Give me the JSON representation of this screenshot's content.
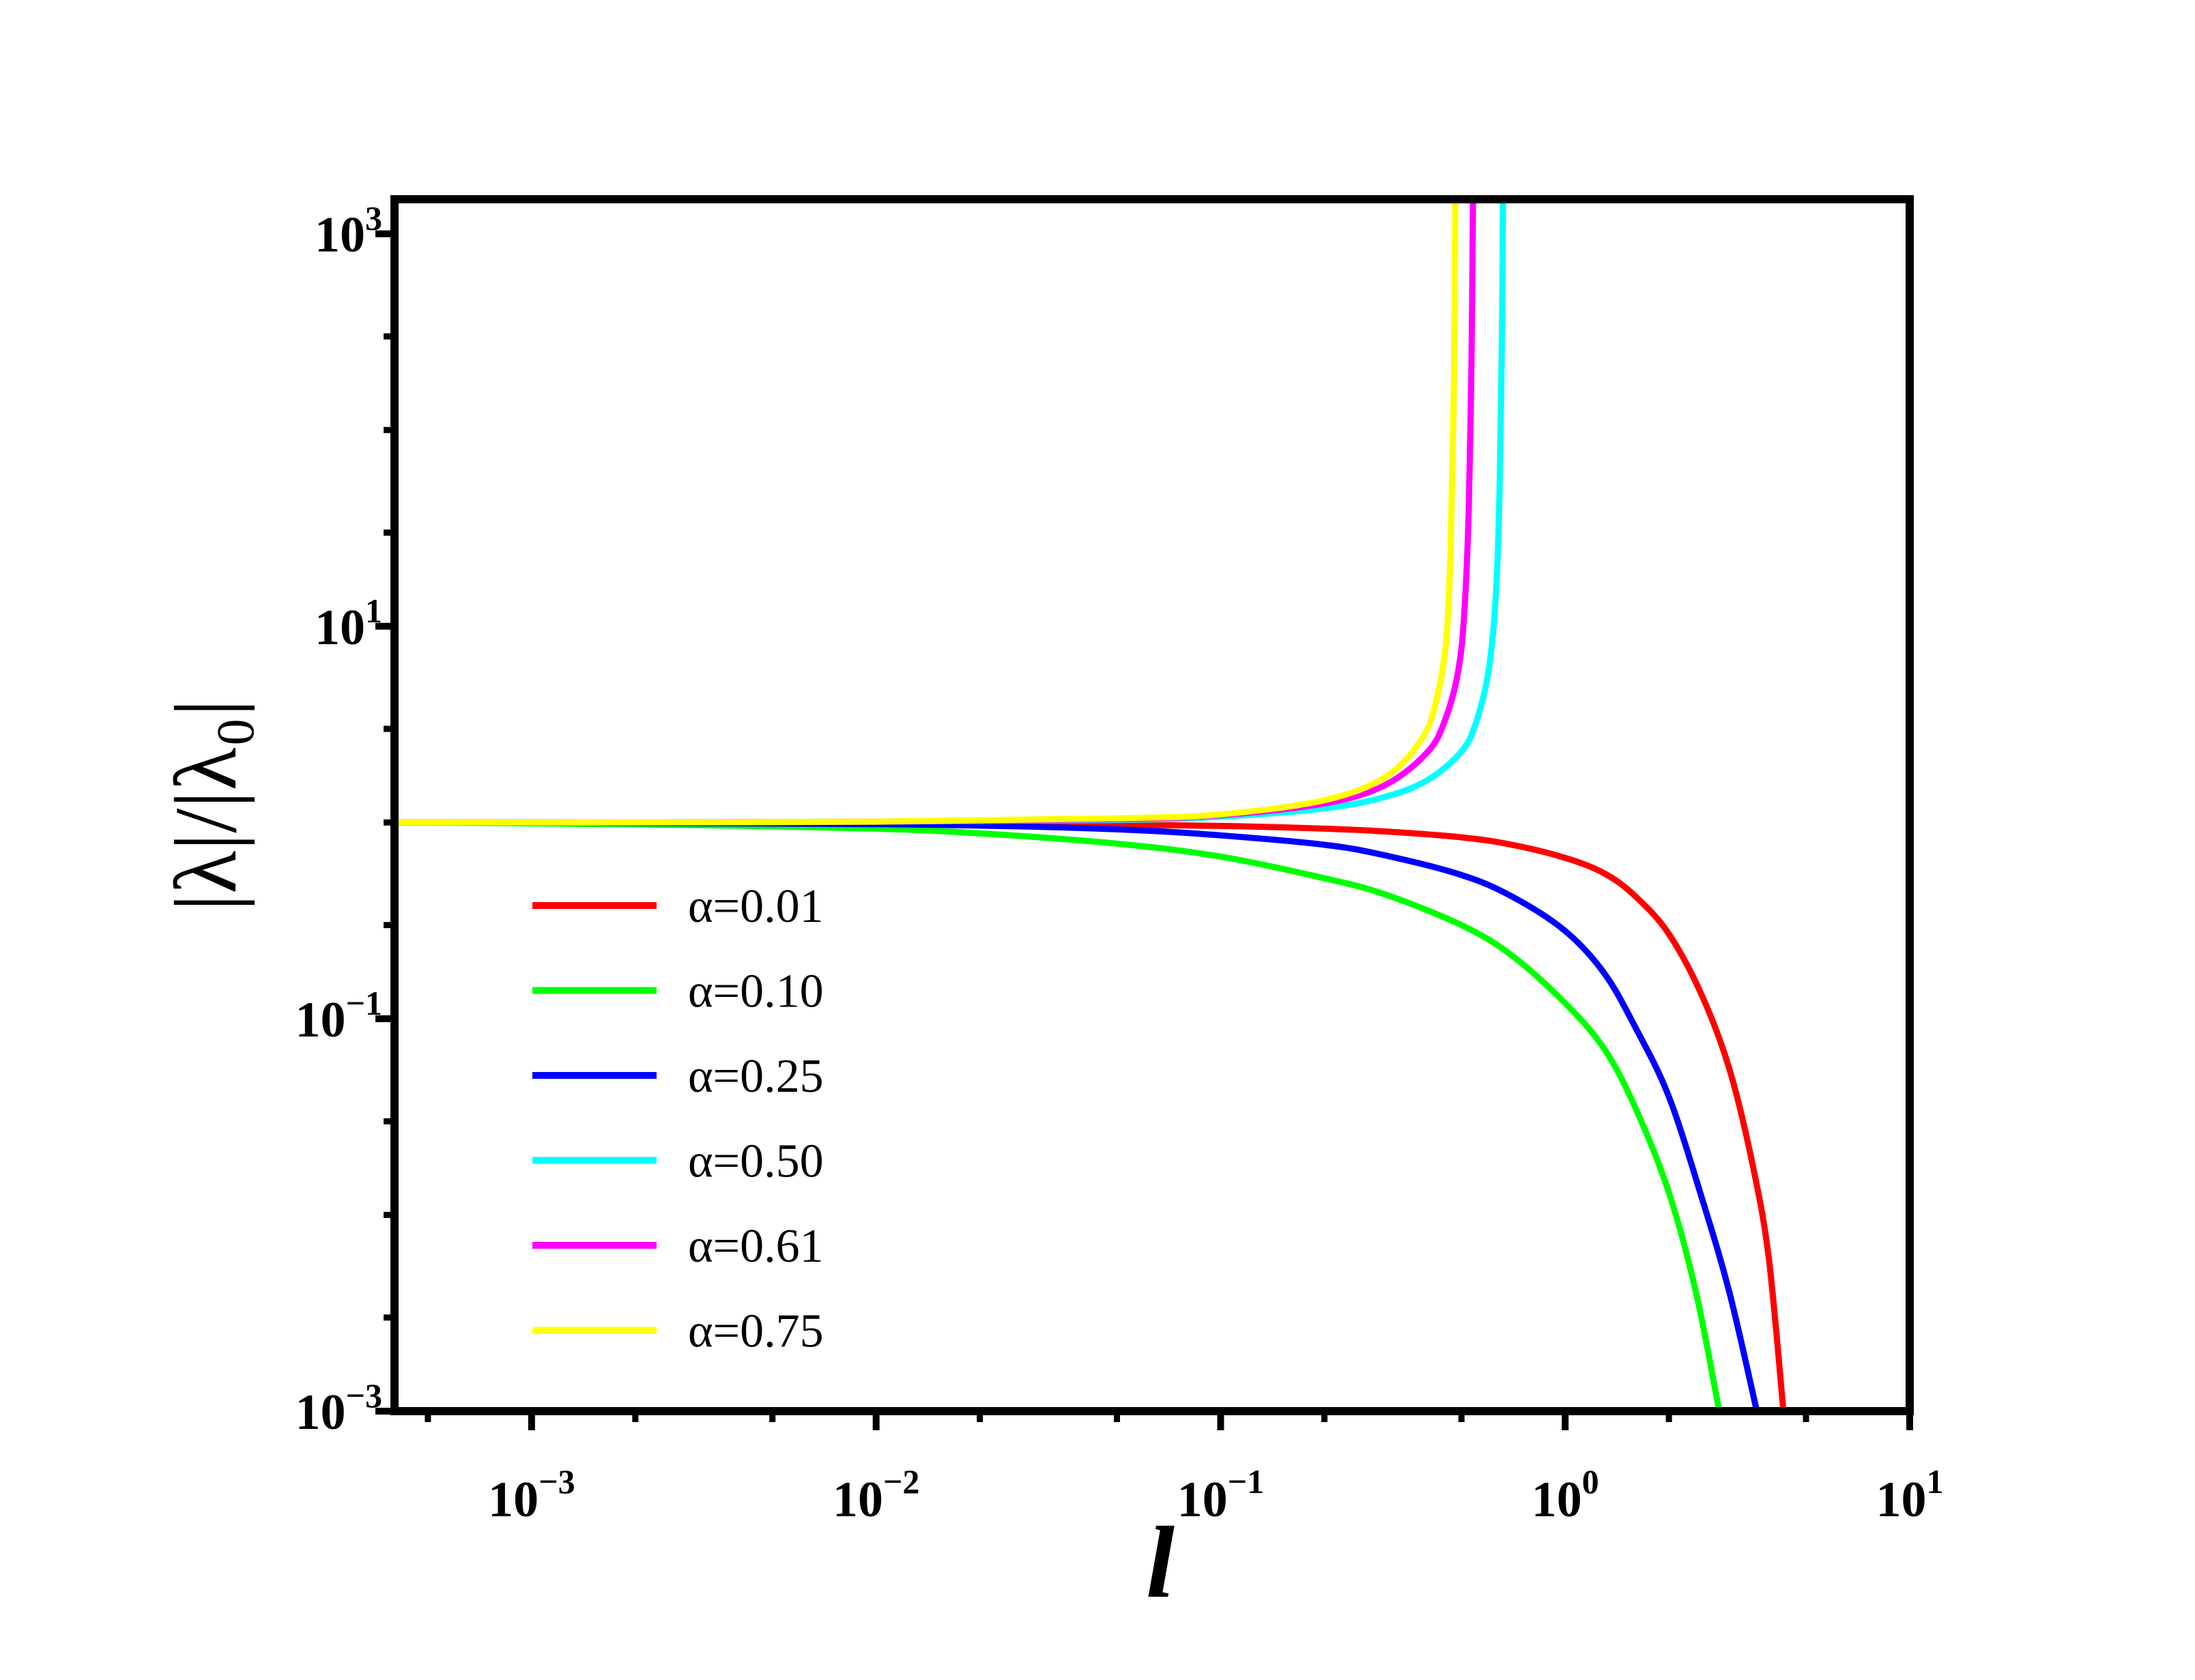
{
  "chart_data": {
    "type": "line",
    "title": "",
    "xlabel": "l",
    "ylabel": "|λ|/|λ₀|",
    "xscale": "log",
    "yscale": "log",
    "xlim": [
      0.0004,
      10
    ],
    "ylim": [
      0.001,
      1500
    ],
    "x_ticks": [
      {
        "value": 0.001,
        "base": "10",
        "exp": "−3"
      },
      {
        "value": 0.01,
        "base": "10",
        "exp": "−2"
      },
      {
        "value": 0.1,
        "base": "10",
        "exp": "−1"
      },
      {
        "value": 1,
        "base": "10",
        "exp": "0"
      },
      {
        "value": 10,
        "base": "10",
        "exp": "1"
      }
    ],
    "y_ticks": [
      {
        "value": 0.001,
        "base": "10",
        "exp": "−3"
      },
      {
        "value": 0.1,
        "base": "10",
        "exp": "−1"
      },
      {
        "value": 10,
        "base": "10",
        "exp": "1"
      },
      {
        "value": 1000,
        "base": "10",
        "exp": "3"
      }
    ],
    "legend_position": "lower-left",
    "series": [
      {
        "name": "α=0.01",
        "color": "#ff0000",
        "x": [
          0.0004,
          0.001,
          0.01,
          0.03,
          0.1,
          0.2,
          0.3,
          0.5,
          0.7,
          1.0,
          1.3,
          1.6,
          2.0,
          2.5,
          3.0,
          3.5,
          3.9,
          4.3
        ],
        "y": [
          1.0,
          1.0,
          0.995,
          0.985,
          0.96,
          0.93,
          0.9,
          0.84,
          0.77,
          0.66,
          0.55,
          0.42,
          0.27,
          0.13,
          0.055,
          0.018,
          0.006,
          0.001
        ]
      },
      {
        "name": "α=0.10",
        "color": "#00ff00",
        "x": [
          0.0004,
          0.001,
          0.003,
          0.01,
          0.02,
          0.05,
          0.1,
          0.2,
          0.3,
          0.5,
          0.7,
          1.0,
          1.3,
          1.6,
          2.0,
          2.4,
          2.8
        ],
        "y": [
          1.0,
          0.99,
          0.97,
          0.93,
          0.88,
          0.78,
          0.67,
          0.52,
          0.43,
          0.3,
          0.21,
          0.12,
          0.07,
          0.035,
          0.013,
          0.004,
          0.001
        ]
      },
      {
        "name": "α=0.25",
        "color": "#0000ff",
        "x": [
          0.0004,
          0.001,
          0.01,
          0.03,
          0.06,
          0.1,
          0.2,
          0.3,
          0.5,
          0.7,
          1.0,
          1.3,
          1.6,
          2.0,
          2.5,
          3.0,
          3.6
        ],
        "y": [
          1.0,
          1.0,
          0.98,
          0.95,
          0.91,
          0.86,
          0.77,
          0.68,
          0.54,
          0.42,
          0.28,
          0.17,
          0.09,
          0.04,
          0.012,
          0.004,
          0.001
        ]
      },
      {
        "name": "α=0.50",
        "color": "#00ffff",
        "x": [
          0.0004,
          0.001,
          0.01,
          0.05,
          0.1,
          0.2,
          0.3,
          0.4,
          0.5,
          0.55,
          0.6,
          0.63,
          0.645,
          0.655,
          0.66
        ],
        "y": [
          1.0,
          1.0,
          1.01,
          1.03,
          1.07,
          1.18,
          1.35,
          1.65,
          2.3,
          3.2,
          6.0,
          15,
          50,
          300,
          1500
        ]
      },
      {
        "name": "α=0.61",
        "color": "#ff00ff",
        "x": [
          0.0004,
          0.001,
          0.01,
          0.05,
          0.1,
          0.2,
          0.3,
          0.4,
          0.45,
          0.49,
          0.51,
          0.525,
          0.535,
          0.54
        ],
        "y": [
          1.0,
          1.0,
          1.01,
          1.04,
          1.09,
          1.25,
          1.55,
          2.3,
          3.4,
          6.0,
          12,
          40,
          250,
          1500
        ]
      },
      {
        "name": "α=0.75",
        "color": "#ffff00",
        "x": [
          0.0004,
          0.001,
          0.01,
          0.05,
          0.1,
          0.2,
          0.3,
          0.38,
          0.42,
          0.45,
          0.465,
          0.475,
          0.48
        ],
        "y": [
          1.0,
          1.0,
          1.01,
          1.05,
          1.1,
          1.3,
          1.7,
          2.6,
          4.0,
          8.0,
          25,
          150,
          1500
        ]
      }
    ]
  }
}
